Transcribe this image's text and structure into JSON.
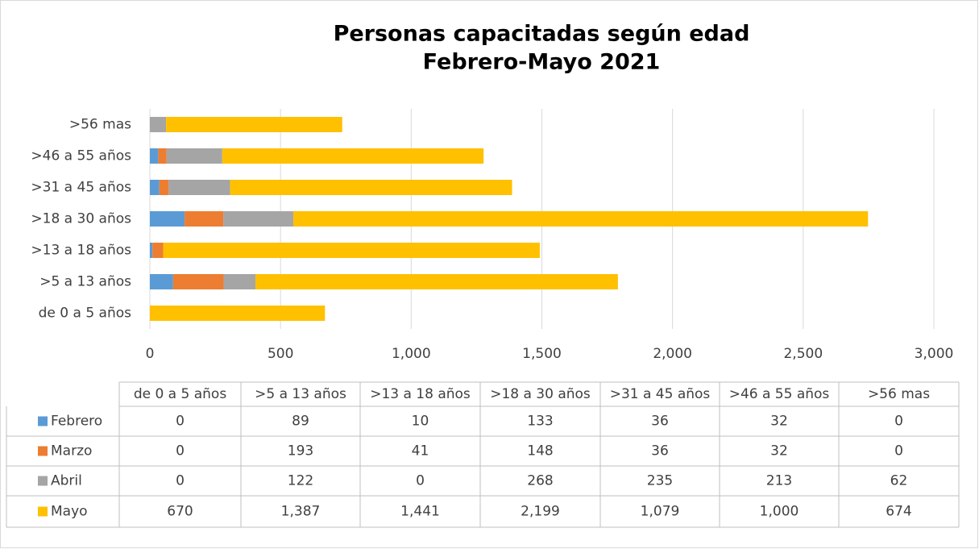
{
  "chart_data": {
    "type": "stacked-barh",
    "title": "Personas capacitadas según edad",
    "subtitle": "Febrero-Mayo  2021",
    "categories": [
      "de 0 a 5 años",
      ">5 a 13 años",
      ">13 a 18 años",
      ">18 a 30 años",
      ">31 a 45 años",
      ">46 a 55 años",
      ">56 mas"
    ],
    "series": [
      {
        "name": "Febrero",
        "color": "#5b9bd5",
        "values": [
          0,
          89,
          10,
          133,
          36,
          32,
          0
        ]
      },
      {
        "name": "Marzo",
        "color": "#ed7d31",
        "values": [
          0,
          193,
          41,
          148,
          36,
          32,
          0
        ]
      },
      {
        "name": "Abril",
        "color": "#a5a5a5",
        "values": [
          0,
          122,
          0,
          268,
          235,
          213,
          62
        ]
      },
      {
        "name": "Mayo",
        "color": "#ffc000",
        "values": [
          670,
          1387,
          1441,
          2199,
          1079,
          1000,
          674
        ],
        "value_labels": [
          "670",
          "1,387",
          "1,441",
          "2,199",
          "1,079",
          "1,000",
          "674"
        ]
      }
    ],
    "xlim": [
      0,
      3000
    ],
    "xticks": [
      0,
      500,
      {
        "value": 1000,
        "label": "1,000"
      },
      {
        "value": 1500,
        "label": "1,500"
      },
      {
        "value": 2000,
        "label": "2,000"
      },
      {
        "value": 2500,
        "label": "2,500"
      },
      {
        "value": 3000,
        "label": "3,000"
      }
    ],
    "grid": true,
    "data_table": true
  }
}
